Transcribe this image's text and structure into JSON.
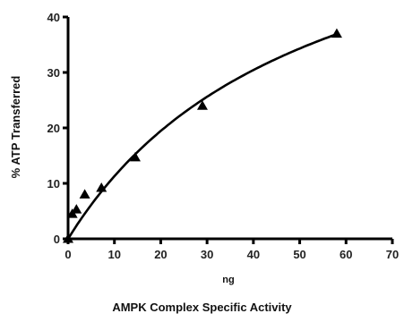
{
  "chart_data": {
    "type": "scatter",
    "title": "AMPK Complex Specific Activity",
    "xlabel": "ng",
    "ylabel": "% ATP Transferred",
    "xlim": [
      0,
      70
    ],
    "ylim": [
      0,
      40
    ],
    "x_ticks": [
      0,
      10,
      20,
      30,
      40,
      50,
      60,
      70
    ],
    "x_tick_labels": [
      "0",
      "10",
      "20",
      "30",
      "40",
      "50",
      "60",
      "70"
    ],
    "y_ticks": [
      0,
      10,
      20,
      30,
      40
    ],
    "y_tick_labels": [
      "0",
      "10",
      "20",
      "30",
      "40"
    ],
    "grid": false,
    "marker": "triangle",
    "points": [
      {
        "x": 0,
        "y": 0
      },
      {
        "x": 0.9,
        "y": 4.5
      },
      {
        "x": 1.8,
        "y": 5.3
      },
      {
        "x": 3.6,
        "y": 8.0
      },
      {
        "x": 7.2,
        "y": 9.2
      },
      {
        "x": 14.5,
        "y": 14.7
      },
      {
        "x": 29,
        "y": 24.0
      },
      {
        "x": 58,
        "y": 37.0
      }
    ],
    "fit_curve": {
      "type": "hyperbola",
      "vmax": 70,
      "km": 52
    }
  }
}
